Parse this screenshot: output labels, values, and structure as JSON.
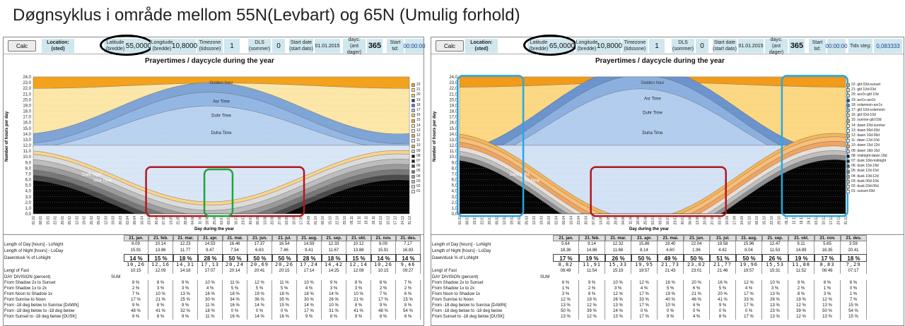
{
  "title": "Døgnsyklus i område mellom 55N(Levbart) og 65N (Umulig forhold)",
  "toolbar": {
    "calc": "Calc",
    "location": "Location:\n(sted)",
    "latitude": "Latitude\n(bredde)",
    "longitude": "Longitude\n(bredde)",
    "longitude_value": "10,8000",
    "timezone": "Timezone\n(tidssone)",
    "timezone_value": "1",
    "dls": "DLS\n(sommer)",
    "dls_value": "0",
    "start_date": "Start date\n(start dato)",
    "start_date_value": "01.01.2015",
    "days": "days:\n(ant dager)",
    "days_value": "365",
    "start_tid": "Start tid:",
    "start_tid_value": "00:00:00",
    "tids_steg": "Tids steg:",
    "tids_steg_value": "0,083333"
  },
  "left": {
    "latitude_value": "55,0000"
  },
  "right": {
    "latitude_value": "65,0000"
  },
  "chart": {
    "title": "Prayertimes / daycycle during the year",
    "ylabel": "Number of hours per day",
    "xlabel": "Day during the year",
    "yticks": [
      "0,0",
      "1,0",
      "2,0",
      "3,0",
      "4,0",
      "5,0",
      "6,0",
      "7,0",
      "8,0",
      "9,0",
      "10,0",
      "11,0",
      "12,0",
      "13,0",
      "14,0",
      "15,0",
      "16,0",
      "17,0",
      "18,0",
      "19,0",
      "20,0",
      "21,0",
      "22,0",
      "23,0",
      "24,0"
    ],
    "xticks": [
      "01.01",
      "08.01",
      "15.01",
      "22.01",
      "29.01",
      "05.02",
      "12.02",
      "19.02",
      "26.02",
      "05.03",
      "12.03",
      "19.03",
      "26.03",
      "02.04",
      "09.04",
      "16.04",
      "23.04",
      "30.04",
      "07.05",
      "14.05",
      "21.05",
      "28.05",
      "04.06",
      "11.06",
      "18.06",
      "25.06",
      "02.07",
      "09.07",
      "16.07",
      "23.07",
      "30.07",
      "06.08",
      "13.08",
      "20.08",
      "27.08",
      "03.09",
      "10.09",
      "17.09",
      "24.09",
      "01.10",
      "08.10",
      "15.10",
      "22.10",
      "29.10",
      "05.11",
      "12.11",
      "19.11",
      "26.11",
      "03.12",
      "10.12",
      "17.12",
      "24.12",
      "31.12"
    ],
    "labels": {
      "golden": "Golden hour",
      "asr": "Asr Time",
      "duhr": "Duhr Time",
      "duha": "Duha Time",
      "dark": "Dark night",
      "isha": "Isha Time"
    }
  },
  "legend_left": [
    "22",
    "21",
    "20",
    "19",
    "18",
    "17",
    "16",
    "15",
    "14",
    "13",
    "12",
    "11",
    "10",
    "09",
    "08",
    "07",
    "06",
    "05",
    "04",
    "03",
    "02",
    "01"
  ],
  "legend_right": [
    "22: gld 03d-sunset",
    "21: gld 10d-03d",
    "20: asr2x-gld 10d",
    "19: asr1x-asr2x",
    "18: solamoon-asr1x",
    "17: gld 10d-solamoon",
    "16: gld 03d-10d",
    "15: sunrise-gld 03d",
    "14: dawn 03d-sunrise",
    "13: dawn 06d-03d",
    "12: dawn 10d-06d",
    "11: dawn 12d-10d",
    "10: dawn 15d-12d",
    "09: dawn 18d-15d",
    "08: midnight-dawn 18d",
    "07: dusk 18d-midnight",
    "06: dusk 15d-18d",
    "05: dusk 12d-15d",
    "04: dusk 10d-12d",
    "03: dusk 06d-10d",
    "02: dusk 03d-06d",
    "01: sunset-03d"
  ],
  "table": {
    "months": [
      "21. jan.",
      "21. feb.",
      "21. mar.",
      "21. apr.",
      "21. mai.",
      "21. jun.",
      "21. jul.",
      "21. aug.",
      "21. sep.",
      "21. okt.",
      "21. nov.",
      "21. des."
    ],
    "sum": "SUM",
    "rows": [
      "Length of Day [hours] - LoNight",
      "Length of Night [hours] - LoDay",
      "Dawn/dusk % of LoNight",
      "Lengt of Fast",
      "DAY DIVISION (percent)",
      "From Shadow 2x to Sunset",
      "From Shadow 1x to 2x",
      "From Noon to Shadow 1x",
      "From Sunrise to Noon",
      "From -18 deg below to Sunrise [DAWN]",
      "From -18 deg below to -18 deg below",
      "From Sunset to -18 deg below [DUSK]"
    ]
  },
  "left_table": {
    "day": [
      "8.09",
      "10.14",
      "12.23",
      "14.53",
      "16.46",
      "17.37",
      "16.54",
      "14.59",
      "12.33",
      "10.12",
      "8.09",
      "7.17"
    ],
    "night": [
      "15.91",
      "13.86",
      "11.77",
      "9.47",
      "7.54",
      "6.63",
      "7.46",
      "9.41",
      "11.67",
      "13.88",
      "15.91",
      "16.83"
    ],
    "pct": [
      "14 %",
      "15 %",
      "18 %",
      "28 %",
      "50 %",
      "50 %",
      "50 %",
      "28 %",
      "18 %",
      "15 %",
      "14 %",
      "14 %"
    ],
    "fast1": [
      "10,26",
      "12,16",
      "14,31",
      "17,13",
      "20,24",
      "20,69",
      "20,26",
      "17,24",
      "14,42",
      "12,14",
      "10,26",
      "9,46"
    ],
    "fast2": [
      "10:15",
      "12:09",
      "14:18",
      "17:07",
      "20:14",
      "20:41",
      "20:15",
      "17:14",
      "14:25",
      "12:08",
      "10:15",
      "09:27"
    ],
    "r1": [
      "8 %",
      "8 %",
      "9 %",
      "10 %",
      "11 %",
      "12 %",
      "11 %",
      "10 %",
      "9 %",
      "8 %",
      "8 %",
      "7 %"
    ],
    "r2": [
      "2 %",
      "3 %",
      "3 %",
      "4 %",
      "5 %",
      "5 %",
      "5 %",
      "4 %",
      "3 %",
      "3 %",
      "2 %",
      "2 %"
    ],
    "r3": [
      "7 %",
      "10 %",
      "13 %",
      "16 %",
      "18 %",
      "19 %",
      "18 %",
      "16 %",
      "14 %",
      "10 %",
      "7 %",
      "6 %"
    ],
    "r4": [
      "17 %",
      "21 %",
      "25 %",
      "30 %",
      "34 %",
      "36 %",
      "35 %",
      "30 %",
      "26 %",
      "21 %",
      "17 %",
      "15 %"
    ],
    "r5": [
      "9 %",
      "8 %",
      "9 %",
      "11 %",
      "16 %",
      "14 %",
      "15 %",
      "14 %",
      "10 %",
      "8 %",
      "9 %",
      "8 %"
    ],
    "r6": [
      "48 %",
      "41 %",
      "32 %",
      "18 %",
      "0 %",
      "0 %",
      "0 %",
      "17 %",
      "31 %",
      "41 %",
      "48 %",
      "54 %"
    ],
    "r7": [
      "9 %",
      "8 %",
      "9 %",
      "11 %",
      "16 %",
      "14 %",
      "16 %",
      "9 %",
      "8 %",
      "9 %",
      "8 %",
      "8 %"
    ]
  },
  "right_table": {
    "day": [
      "5.64",
      "9.14",
      "12.32",
      "15.86",
      "19.40",
      "22.04",
      "19.58",
      "15.96",
      "12.47",
      "9.11",
      "5.65",
      "3.59"
    ],
    "night": [
      "18.36",
      "14.86",
      "11.68",
      "8.14",
      "4.60",
      "1.96",
      "4.42",
      "8.04",
      "11.53",
      "14.89",
      "18.35",
      "20.41"
    ],
    "pct": [
      "17 %",
      "19 %",
      "26 %",
      "50 %",
      "49 %",
      "50 %",
      "51 %",
      "50 %",
      "26 %",
      "19 %",
      "17 %",
      "18 %"
    ],
    "fast1": [
      "8,82",
      "11,91",
      "15,33",
      "19,95",
      "21,73",
      "23,02",
      "21,77",
      "19,96",
      "15,53",
      "11,88",
      "8,83",
      "7,29"
    ],
    "fast2": [
      "08:49",
      "11:54",
      "15:19",
      "19:57",
      "21:43",
      "23:01",
      "21:46",
      "19:57",
      "15:31",
      "11:52",
      "08:49",
      "07:17"
    ],
    "r1": [
      "6 %",
      "9 %",
      "10 %",
      "12 %",
      "16 %",
      "20 %",
      "16 %",
      "12 %",
      "10 %",
      "9 %",
      "8 %",
      "6 %"
    ],
    "r2": [
      "1 %",
      "2 %",
      "3 %",
      "4 %",
      "5 %",
      "6 %",
      "5 %",
      "4 %",
      "3 %",
      "2 %",
      "1 %",
      "0 %"
    ],
    "r3": [
      "3 %",
      "8 %",
      "12 %",
      "17 %",
      "19 %",
      "21 %",
      "20 %",
      "17 %",
      "13 %",
      "8 %",
      "3 %",
      "1 %"
    ],
    "r4": [
      "12 %",
      "19 %",
      "26 %",
      "33 %",
      "40 %",
      "46 %",
      "41 %",
      "33 %",
      "26 %",
      "19 %",
      "12 %",
      "7 %"
    ],
    "r5": [
      "13 %",
      "12 %",
      "13 %",
      "17 %",
      "10 %",
      "4 %",
      "9 %",
      "17 %",
      "13 %",
      "12 %",
      "13 %",
      "15 %"
    ],
    "r6": [
      "50 %",
      "39 %",
      "24 %",
      "0 %",
      "0 %",
      "0 %",
      "0 %",
      "0 %",
      "23 %",
      "39 %",
      "50 %",
      "54 %"
    ],
    "r7": [
      "13 %",
      "12 %",
      "13 %",
      "17 %",
      "9 %",
      "4 %",
      "8 %",
      "17 %",
      "13 %",
      "12 %",
      "13 %",
      "15 %"
    ]
  },
  "colors": {
    "highlight_red": "#b0171f",
    "highlight_green": "#1fa33a",
    "highlight_blue": "#2aa6e0",
    "oval": "#000000"
  }
}
